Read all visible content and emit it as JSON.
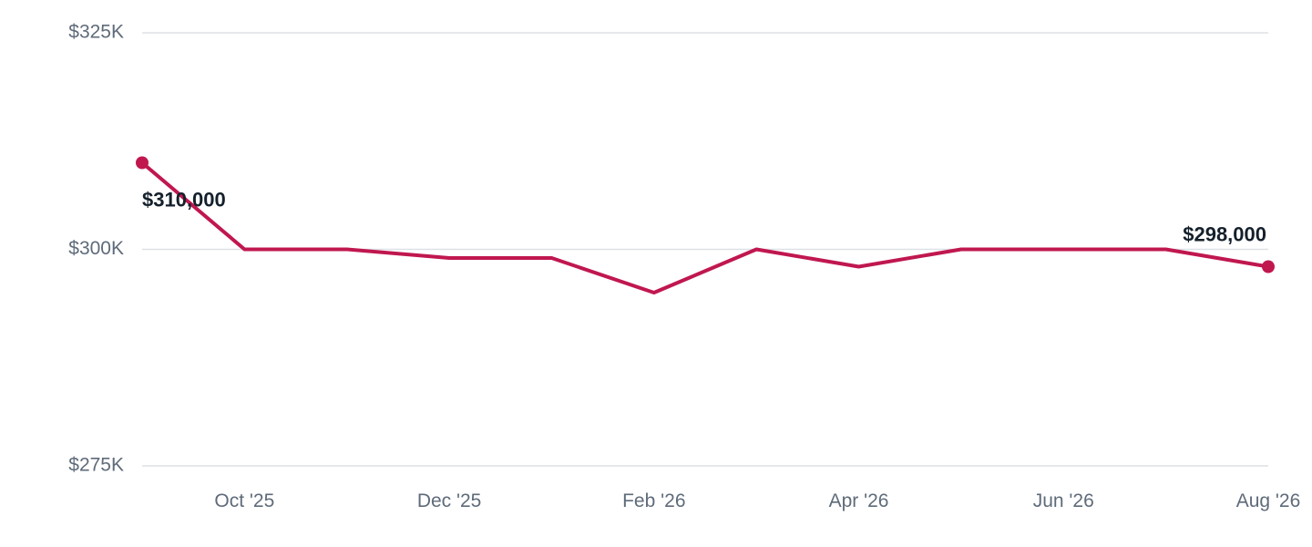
{
  "chart_data": {
    "type": "line",
    "title": "",
    "xlabel": "",
    "ylabel": "",
    "x": [
      "2025-09",
      "2025-10",
      "2025-11",
      "2025-12",
      "2026-01",
      "2026-02",
      "2026-03",
      "2026-04",
      "2026-05",
      "2026-06",
      "2026-07",
      "2026-08"
    ],
    "series": [
      {
        "values": [
          310000,
          300000,
          300000,
          299000,
          299000,
          295000,
          300000,
          298000,
          300000,
          300000,
          300000,
          298000
        ]
      }
    ],
    "ylim": [
      275000,
      325000
    ],
    "y_ticks": [
      {
        "value": 325000,
        "label": "$325K"
      },
      {
        "value": 300000,
        "label": "$300K"
      },
      {
        "value": 275000,
        "label": "$275K"
      }
    ],
    "x_ticks": [
      {
        "x": "2025-10",
        "label": "Oct '25"
      },
      {
        "x": "2025-12",
        "label": "Dec '25"
      },
      {
        "x": "2026-02",
        "label": "Feb '26"
      },
      {
        "x": "2026-04",
        "label": "Apr '26"
      },
      {
        "x": "2026-06",
        "label": "Jun '26"
      },
      {
        "x": "2026-08",
        "label": "Aug '26"
      }
    ],
    "annotations": [
      {
        "x": "2025-09",
        "value": 310000,
        "label": "$310,000"
      },
      {
        "x": "2026-08",
        "value": 298000,
        "label": "$298,000"
      }
    ],
    "grid": true,
    "legend": "none",
    "colors": {
      "line": "#c0174f",
      "grid": "#dde1e6",
      "tick_text": "#5f6b7a",
      "label_text": "#14202b"
    }
  }
}
